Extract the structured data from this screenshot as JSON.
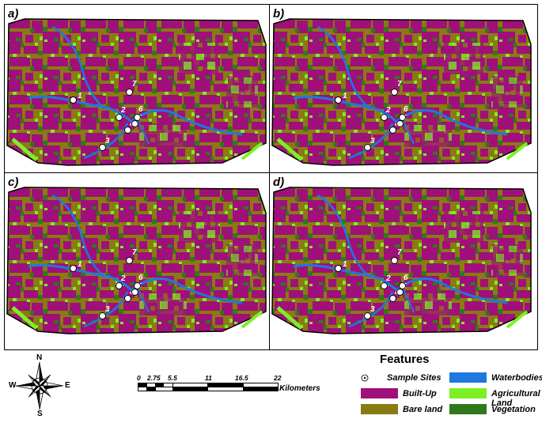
{
  "panels": [
    {
      "label": "a)"
    },
    {
      "label": "b)"
    },
    {
      "label": "c)"
    },
    {
      "label": "d)"
    }
  ],
  "sites": [
    "1",
    "2",
    "3",
    "4",
    "5",
    "6",
    "7"
  ],
  "legend": {
    "title": "Features",
    "items": [
      {
        "label": "Sample Sites",
        "color": "#ffffff",
        "kind": "point"
      },
      {
        "label": "Waterbodies",
        "color": "#1f78e0",
        "kind": "swatch"
      },
      {
        "label": "Built-Up",
        "color": "#a0107a",
        "kind": "swatch"
      },
      {
        "label": "Agricultural Land",
        "color": "#7cf023",
        "kind": "swatch"
      },
      {
        "label": "Bare land",
        "color": "#8a7a13",
        "kind": "swatch"
      },
      {
        "label": "Vegetation",
        "color": "#2e7a1a",
        "kind": "swatch"
      }
    ]
  },
  "scale": {
    "ticks": [
      "0",
      "2.75",
      "5.5",
      "11",
      "16.5",
      "22"
    ],
    "unit": "Kilometers"
  },
  "compass": {
    "n": "N",
    "s": "S",
    "e": "E",
    "w": "W"
  }
}
